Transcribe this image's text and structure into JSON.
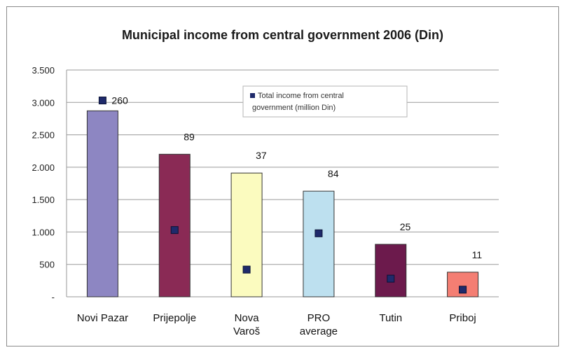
{
  "chart_data": {
    "type": "bar",
    "title": "Municipal income from central government 2006 (Din)",
    "xlabel": "",
    "ylabel": "",
    "categories": [
      [
        "Novi Pazar"
      ],
      [
        "Prijepolje"
      ],
      [
        "Nova",
        "Varoš"
      ],
      [
        "PRO",
        "average"
      ],
      [
        "Tutin"
      ],
      [
        "Priboj"
      ]
    ],
    "ylim": [
      0,
      3500
    ],
    "yticks": [
      0,
      500,
      1000,
      1500,
      2000,
      2500,
      3000,
      3500
    ],
    "ytick_labels": [
      "-",
      "500",
      "1.000",
      "1.500",
      "2.000",
      "2.500",
      "3.000",
      "3.500"
    ],
    "grid": true,
    "bar_values": [
      2870,
      2200,
      1910,
      1630,
      810,
      380
    ],
    "bar_colors": [
      "#8d86c2",
      "#8a2a55",
      "#fbfbbf",
      "#bde0ef",
      "#6c1a4c",
      "#f47e73"
    ],
    "series": [
      {
        "name": "Total income from central government (million Din)",
        "type": "scatter",
        "values": [
          260,
          89,
          37,
          84,
          25,
          11
        ],
        "labels": [
          "260",
          "89",
          "37",
          "84",
          "25",
          "11"
        ],
        "marker_positions": [
          3030,
          1030,
          420,
          980,
          280,
          110
        ],
        "color": "#1f2a6b"
      }
    ],
    "legend_position": "top-right",
    "legend_lines": [
      "Total income from central",
      "government (million Din)"
    ]
  }
}
